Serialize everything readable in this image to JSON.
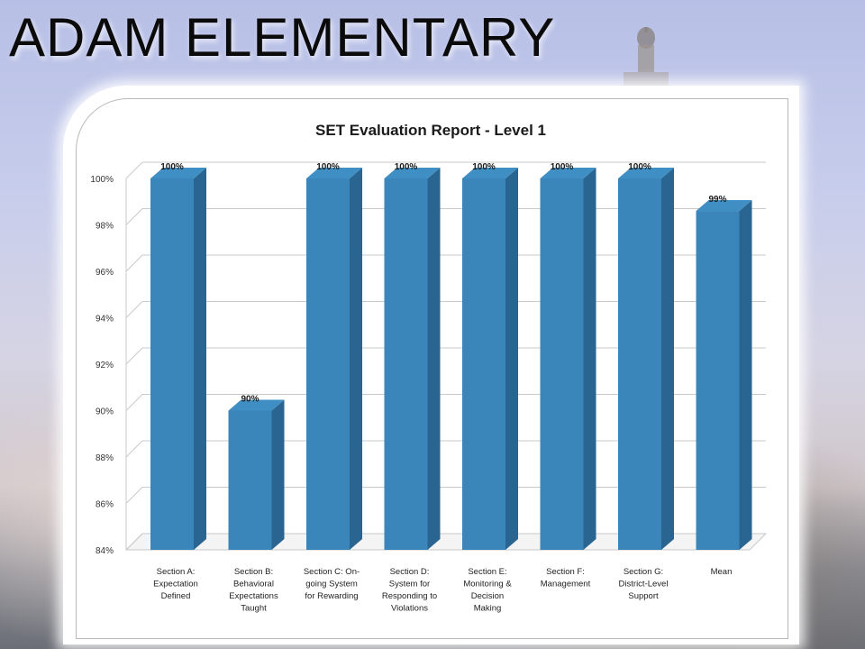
{
  "slide": {
    "title": "ADAM ELEMENTARY"
  },
  "chart_data": {
    "type": "bar",
    "title": "SET Evaluation Report - Level 1",
    "categories": [
      "Section A: Expectation Defined",
      "Section B: Behavioral Expectations Taught",
      "Section C: On-going System for Rewarding",
      "Section D: System for Responding to Violations",
      "Section E: Monitoring & Decision Making",
      "Section F: Management",
      "Section G: District-Level Support",
      "Mean"
    ],
    "category_lines": [
      [
        "Section A:",
        "Expectation",
        "Defined"
      ],
      [
        "Section B:",
        "Behavioral",
        "Expectations",
        "Taught"
      ],
      [
        "Section C: On-",
        "going System",
        "for Rewarding"
      ],
      [
        "Section D:",
        "System for",
        "Responding to",
        "Violations"
      ],
      [
        "Section E:",
        "Monitoring &",
        "Decision",
        "Making"
      ],
      [
        "Section F:",
        "Management"
      ],
      [
        "Section G:",
        "District-Level",
        "Support"
      ],
      [
        "Mean"
      ]
    ],
    "values": [
      100,
      90,
      100,
      100,
      100,
      100,
      100,
      98.6
    ],
    "data_labels": [
      "100%",
      "90%",
      "100%",
      "100%",
      "100%",
      "100%",
      "100%",
      "99%"
    ],
    "ylim": [
      84,
      100
    ],
    "yticks": [
      "84%",
      "86%",
      "88%",
      "90%",
      "92%",
      "94%",
      "96%",
      "98%",
      "100%"
    ],
    "ytick_values": [
      84,
      86,
      88,
      90,
      92,
      94,
      96,
      98,
      100
    ],
    "grid": true,
    "legend": "none",
    "bar_color": "#3a86ba",
    "bar_side_color": "#2a6591",
    "bar_top_color": "#3f8fc4"
  }
}
